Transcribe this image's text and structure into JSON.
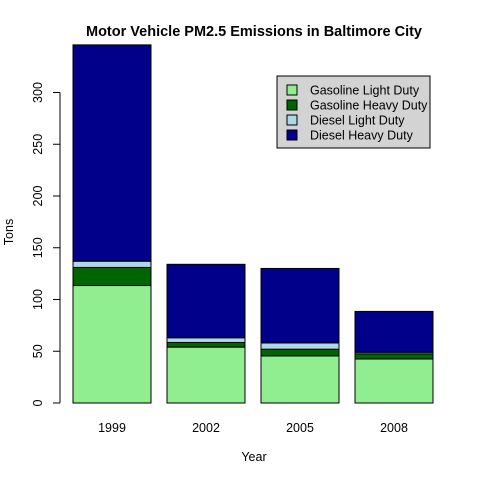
{
  "chart_data": {
    "type": "bar",
    "stacked": true,
    "title": "Motor Vehicle PM2.5 Emissions in Baltimore City",
    "xlabel": "Year",
    "ylabel": "Tons",
    "categories": [
      "1999",
      "2002",
      "2005",
      "2008"
    ],
    "ylim": [
      0,
      345
    ],
    "yticks": [
      0,
      50,
      100,
      150,
      200,
      250,
      300
    ],
    "grid": false,
    "legend_position": "top-right",
    "series": [
      {
        "name": "Gasoline Light Duty",
        "color": "#90ee90",
        "values": [
          113.5,
          54,
          45.5,
          42.5
        ]
      },
      {
        "name": "Gasoline Heavy Duty",
        "color": "#006400",
        "values": [
          17.5,
          4.5,
          6.5,
          5
        ]
      },
      {
        "name": "Diesel Light Duty",
        "color": "#add8e6",
        "values": [
          6,
          4.5,
          6,
          1.5
        ]
      },
      {
        "name": "Diesel Heavy Duty",
        "color": "#00008b",
        "values": [
          209,
          71,
          72,
          39.5
        ]
      }
    ]
  }
}
